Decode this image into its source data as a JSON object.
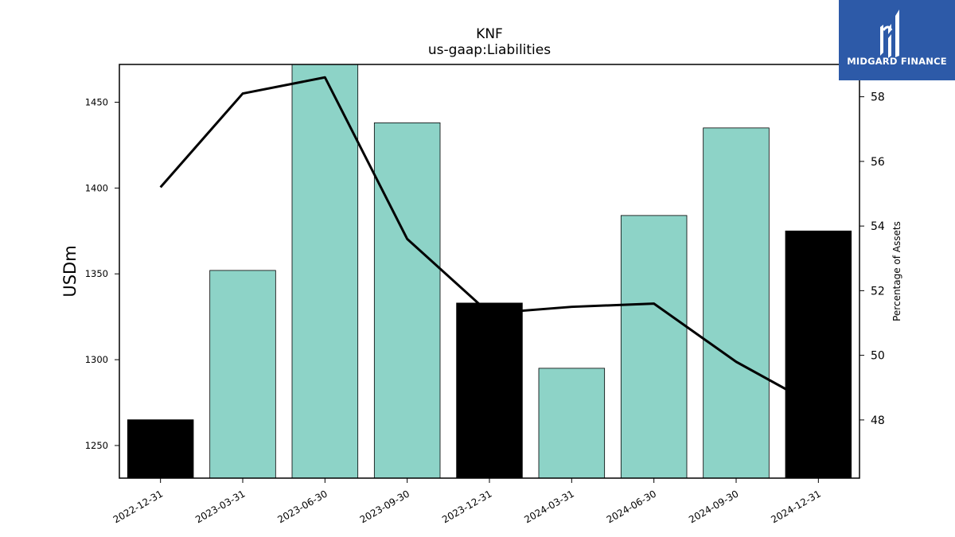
{
  "chart_data": {
    "type": "bar",
    "title": "KNF",
    "subtitle": "us-gaap:Liabilities",
    "ylabel": "USDm",
    "y2label": "Percentage of Assets",
    "categories": [
      "2022-12-31",
      "2023-03-31",
      "2023-06-30",
      "2023-09-30",
      "2023-12-31",
      "2024-03-31",
      "2024-06-30",
      "2024-09-30",
      "2024-12-31"
    ],
    "series": [
      {
        "type": "bar",
        "values": [
          1265,
          1352,
          1473,
          1438,
          1333,
          1295,
          1384,
          1435,
          1375
        ],
        "colors": [
          "#000000",
          "#8dd3c7",
          "#8dd3c7",
          "#8dd3c7",
          "#000000",
          "#8dd3c7",
          "#8dd3c7",
          "#8dd3c7",
          "#000000"
        ]
      },
      {
        "type": "line",
        "axis": "right",
        "values": [
          55.2,
          58.1,
          58.6,
          53.6,
          51.3,
          51.5,
          51.6,
          49.8,
          48.4
        ],
        "color": "#000000"
      }
    ],
    "ylim": [
      1231,
      1472
    ],
    "yticks": [
      1250,
      1300,
      1350,
      1400,
      1450
    ],
    "y2lim": [
      46.2,
      59.0
    ],
    "y2ticks": [
      48,
      50,
      52,
      54,
      56,
      58
    ],
    "grid": false,
    "legend": "none"
  },
  "logo": {
    "text": "MIDGARD FINANCE"
  }
}
